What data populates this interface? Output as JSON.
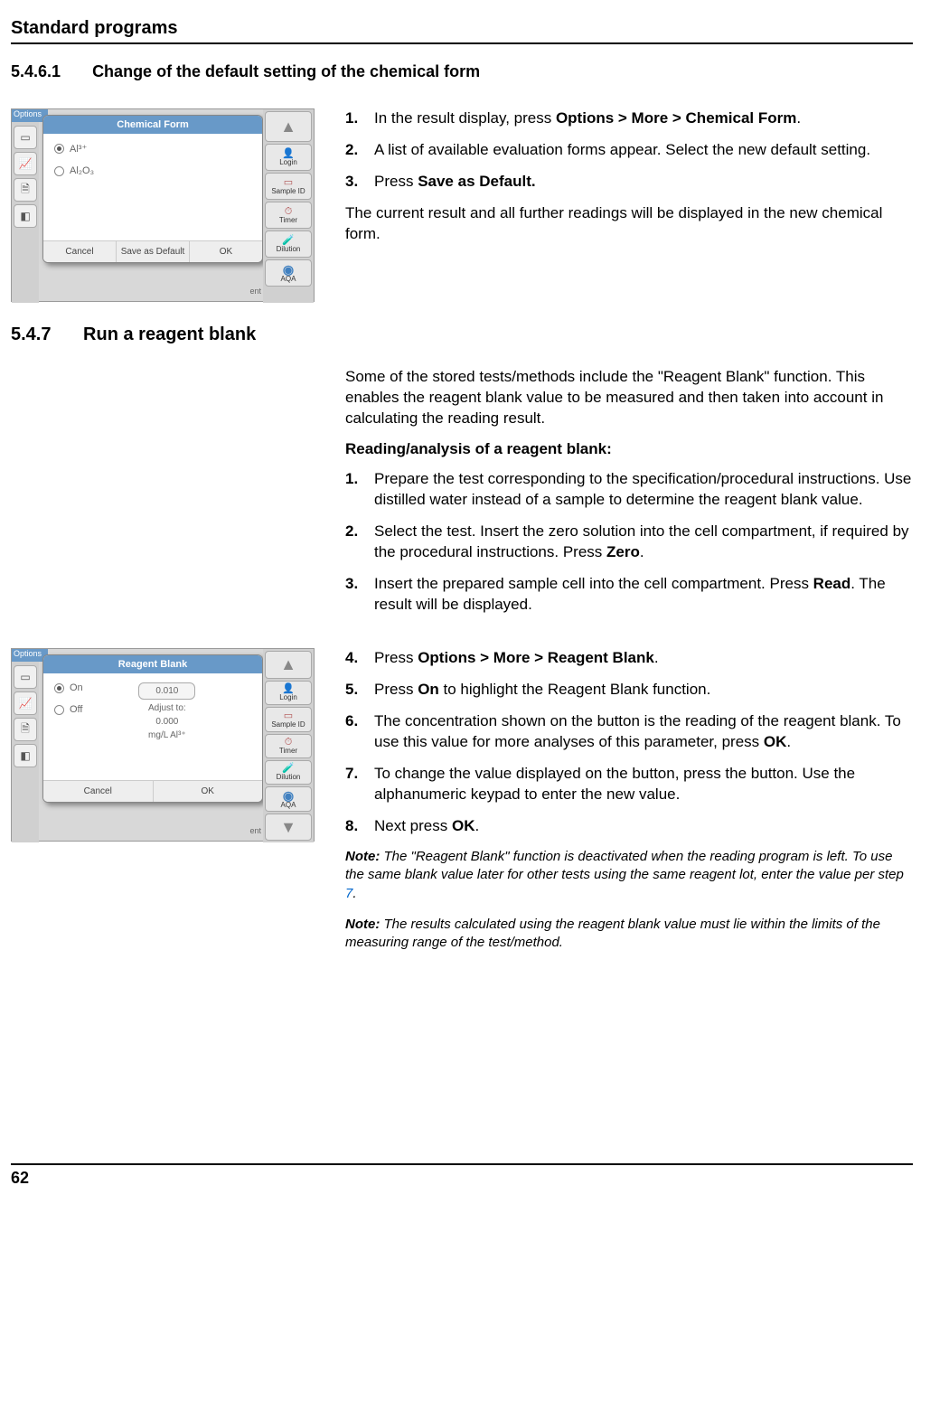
{
  "header": {
    "title": "Standard programs"
  },
  "section_5_4_6_1": {
    "number": "5.4.6.1",
    "title": "Change of the default setting of the chemical form",
    "screenshot1": {
      "options_label": "Options",
      "dialog_title": "Chemical Form",
      "radio1": "Al³⁺",
      "radio2": "Al₂O₃",
      "btn_cancel": "Cancel",
      "btn_save": "Save as Default",
      "btn_ok": "OK",
      "right_login": "Login",
      "right_sample": "Sample ID",
      "right_timer": "Timer",
      "right_dilution": "Dilution",
      "right_aqa": "AQA",
      "behind": "ent"
    },
    "steps": {
      "s1a": "In the result display, press ",
      "s1b": "Options > More > Chemical Form",
      "s1c": ".",
      "s2": "A list of available evaluation forms appear. Select the new default setting.",
      "s3a": "Press ",
      "s3b": "Save as Default."
    },
    "outro": "The current result and all further readings will be displayed in the new chemical form."
  },
  "section_5_4_7": {
    "number": "5.4.7",
    "title": "Run a reagent blank",
    "intro": "Some of the stored tests/methods include the \"Reagent Blank\" function. This enables the reagent blank value to be measured and then taken into account in calculating the reading result.",
    "subheading": "Reading/analysis of a reagent blank:",
    "steps_a": {
      "s1": "Prepare the test corresponding to the specification/procedural instructions. Use distilled water instead of a sample to determine the reagent blank value.",
      "s2a": "Select the test. Insert the zero solution into the cell compartment, if required by the procedural instructions. Press ",
      "s2b": "Zero",
      "s2c": ".",
      "s3a": "Insert the prepared sample cell into the cell compartment. Press ",
      "s3b": "Read",
      "s3c": ". The result will be displayed."
    },
    "screenshot2": {
      "options_label": "Options",
      "dialog_title": "Reagent Blank",
      "radio_on": "On",
      "radio_off": "Off",
      "value": "0.010",
      "adjust_label": "Adjust to:",
      "adjust_value": "0.000",
      "unit": "mg/L Al³⁺",
      "btn_cancel": "Cancel",
      "btn_ok": "OK",
      "right_login": "Login",
      "right_sample": "Sample ID",
      "right_timer": "Timer",
      "right_dilution": "Dilution",
      "right_aqa": "AQA",
      "behind": "ent"
    },
    "steps_b": {
      "s4a": "Press ",
      "s4b": "Options > More > Reagent Blank",
      "s4c": ".",
      "s5a": "Press ",
      "s5b": "On",
      "s5c": " to highlight the Reagent Blank function.",
      "s6a": "The concentration shown on the button is the reading of the reagent blank. To use this value for more analyses of this parameter, press ",
      "s6b": "OK",
      "s6c": ".",
      "s7": "To change the value displayed on the button, press the button. Use the alphanumeric keypad to enter the new value.",
      "s8a": "Next press ",
      "s8b": "OK",
      "s8c": "."
    },
    "note1a": "Note:",
    "note1b": " The \"Reagent Blank\" function is deactivated when the reading program is left. To use the same blank value later for other tests using the same reagent lot, enter the value per step ",
    "note1c": "7",
    "note1d": ".",
    "note2a": "Note:",
    "note2b": " The results calculated using the reagent blank value must lie within the limits of the measuring range of the test/method."
  },
  "footer": {
    "page": "62"
  }
}
